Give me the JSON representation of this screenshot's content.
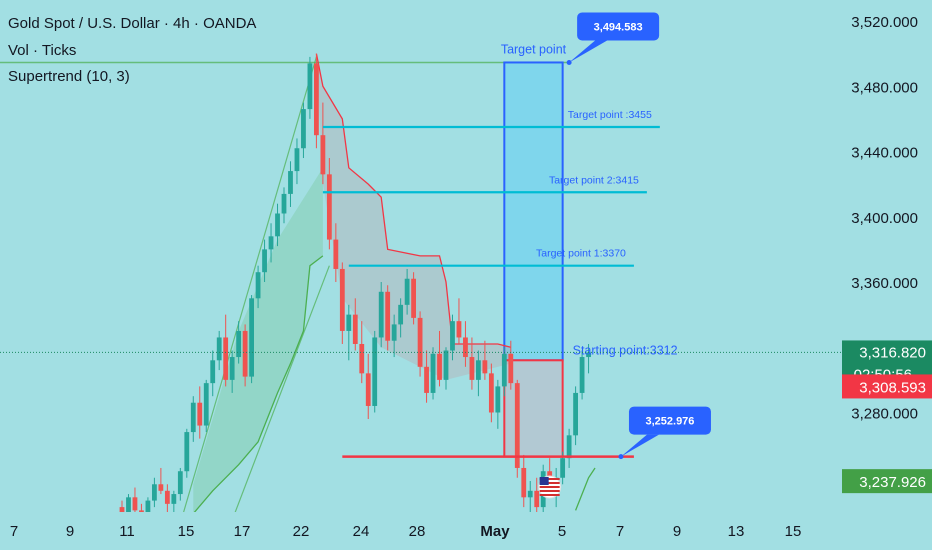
{
  "legend": {
    "title": "Gold Spot / U.S. Dollar · 4h · OANDA",
    "volume": "Vol · Ticks",
    "indicator": "Supertrend (10, 3)"
  },
  "colors": {
    "background": "#a2dfe3",
    "bull": "#26a69a",
    "bear": "#ef5350",
    "supertrend_up": "#4caf50",
    "supertrend_down": "#f23645",
    "target_line": "#00bcd4",
    "box_blue": "#2962ff",
    "box_red": "#f23645",
    "callout": "#2962ff",
    "price_now": "#1b8a62",
    "price_bid": "#f23645",
    "price_green": "#43a047"
  },
  "chart_data": {
    "type": "candlestick",
    "symbol": "XAUUSD",
    "timeframe": "4h",
    "x_ticks": [
      "7",
      "9",
      "11",
      "15",
      "17",
      "22",
      "24",
      "28",
      "May",
      "5",
      "7",
      "9",
      "13",
      "15"
    ],
    "x_tick_bold": "May",
    "y_ticks": [
      3520,
      3480,
      3440,
      3400,
      3360,
      3280
    ],
    "y_tick_labels": [
      "3,520.000",
      "3,480.000",
      "3,440.000",
      "3,400.000",
      "3,360.000",
      "3,280.000"
    ],
    "ylim": [
      3215,
      3532
    ],
    "current_price": {
      "value": 3316.82,
      "label": "3,316.820",
      "countdown": "02:50:56"
    },
    "price_labels": [
      {
        "value": 3308.593,
        "label": "3,308.593",
        "color": "#f23645"
      },
      {
        "value": 3237.926,
        "label": "3,237.926",
        "color": "#43a047"
      }
    ],
    "candles": [
      [
        3222,
        3226,
        3212,
        3218
      ],
      [
        3218,
        3230,
        3215,
        3228
      ],
      [
        3228,
        3234,
        3216,
        3220
      ],
      [
        3220,
        3224,
        3210,
        3214
      ],
      [
        3214,
        3228,
        3210,
        3226
      ],
      [
        3226,
        3240,
        3222,
        3236
      ],
      [
        3236,
        3246,
        3230,
        3232
      ],
      [
        3232,
        3236,
        3218,
        3224
      ],
      [
        3224,
        3232,
        3216,
        3230
      ],
      [
        3230,
        3246,
        3226,
        3244
      ],
      [
        3244,
        3270,
        3240,
        3268
      ],
      [
        3268,
        3290,
        3262,
        3286
      ],
      [
        3286,
        3296,
        3264,
        3272
      ],
      [
        3272,
        3300,
        3268,
        3298
      ],
      [
        3298,
        3318,
        3290,
        3312
      ],
      [
        3312,
        3330,
        3306,
        3326
      ],
      [
        3326,
        3340,
        3296,
        3300
      ],
      [
        3300,
        3318,
        3292,
        3314
      ],
      [
        3314,
        3336,
        3310,
        3330
      ],
      [
        3330,
        3334,
        3296,
        3302
      ],
      [
        3302,
        3352,
        3298,
        3350
      ],
      [
        3350,
        3370,
        3344,
        3366
      ],
      [
        3366,
        3386,
        3360,
        3380
      ],
      [
        3380,
        3396,
        3372,
        3388
      ],
      [
        3388,
        3408,
        3382,
        3402
      ],
      [
        3402,
        3418,
        3396,
        3414
      ],
      [
        3414,
        3434,
        3406,
        3428
      ],
      [
        3428,
        3448,
        3420,
        3442
      ],
      [
        3442,
        3470,
        3436,
        3466
      ],
      [
        3466,
        3498,
        3460,
        3494
      ],
      [
        3494,
        3500,
        3442,
        3450
      ],
      [
        3450,
        3470,
        3420,
        3426
      ],
      [
        3426,
        3436,
        3380,
        3386
      ],
      [
        3386,
        3396,
        3360,
        3368
      ],
      [
        3368,
        3372,
        3322,
        3330
      ],
      [
        3330,
        3346,
        3312,
        3340
      ],
      [
        3340,
        3350,
        3318,
        3322
      ],
      [
        3322,
        3336,
        3298,
        3304
      ],
      [
        3304,
        3316,
        3276,
        3284
      ],
      [
        3284,
        3330,
        3280,
        3326
      ],
      [
        3326,
        3360,
        3320,
        3354
      ],
      [
        3354,
        3358,
        3318,
        3324
      ],
      [
        3324,
        3340,
        3314,
        3334
      ],
      [
        3334,
        3350,
        3326,
        3346
      ],
      [
        3346,
        3368,
        3340,
        3362
      ],
      [
        3362,
        3366,
        3334,
        3338
      ],
      [
        3338,
        3342,
        3302,
        3308
      ],
      [
        3308,
        3318,
        3286,
        3292
      ],
      [
        3292,
        3320,
        3288,
        3316
      ],
      [
        3316,
        3330,
        3296,
        3300
      ],
      [
        3300,
        3320,
        3294,
        3318
      ],
      [
        3318,
        3340,
        3312,
        3336
      ],
      [
        3336,
        3350,
        3322,
        3326
      ],
      [
        3326,
        3336,
        3308,
        3314
      ],
      [
        3314,
        3326,
        3294,
        3300
      ],
      [
        3300,
        3318,
        3290,
        3312
      ],
      [
        3312,
        3324,
        3300,
        3304
      ],
      [
        3304,
        3310,
        3274,
        3280
      ],
      [
        3280,
        3300,
        3270,
        3296
      ],
      [
        3296,
        3320,
        3290,
        3316
      ],
      [
        3316,
        3324,
        3294,
        3298
      ],
      [
        3298,
        3300,
        3240,
        3246
      ],
      [
        3246,
        3254,
        3222,
        3228
      ],
      [
        3228,
        3238,
        3214,
        3232
      ],
      [
        3232,
        3240,
        3218,
        3222
      ],
      [
        3222,
        3248,
        3218,
        3244
      ],
      [
        3244,
        3252,
        3230,
        3236
      ],
      [
        3236,
        3246,
        3222,
        3240
      ],
      [
        3240,
        3256,
        3236,
        3252
      ],
      [
        3252,
        3270,
        3246,
        3266
      ],
      [
        3266,
        3296,
        3260,
        3292
      ],
      [
        3292,
        3318,
        3288,
        3314
      ],
      [
        3314,
        3322,
        3304,
        3316.82
      ]
    ],
    "supertrend": [
      {
        "direction": "up",
        "points": [
          [
            11,
            3218
          ],
          [
            14,
            3232
          ],
          [
            18,
            3248
          ],
          [
            21,
            3262
          ],
          [
            24,
            3292
          ],
          [
            26,
            3310
          ],
          [
            28,
            3330
          ],
          [
            29,
            3370
          ],
          [
            31,
            3376
          ]
        ]
      },
      {
        "direction": "down",
        "points": [
          [
            30,
            3500
          ],
          [
            31,
            3480
          ],
          [
            34,
            3460
          ],
          [
            35,
            3430
          ],
          [
            38,
            3420
          ],
          [
            40,
            3412
          ],
          [
            41,
            3380
          ],
          [
            46,
            3376
          ],
          [
            49,
            3376
          ],
          [
            50,
            3360
          ],
          [
            51,
            3322
          ],
          [
            54,
            3322
          ],
          [
            58,
            3322
          ],
          [
            60,
            3320
          ]
        ]
      },
      {
        "direction": "up",
        "points": [
          [
            70,
            3220
          ],
          [
            72,
            3240
          ],
          [
            73,
            3246
          ]
        ]
      }
    ],
    "annotations": {
      "channel_lines": [
        {
          "points": [
            [
              9,
              3212
            ],
            [
              30,
              3498
            ]
          ]
        },
        {
          "points": [
            [
              17,
              3214
            ],
            [
              32,
              3370
            ]
          ]
        }
      ],
      "resistance_line": {
        "value": 3494.583,
        "from": 0,
        "to": 69
      },
      "support_line": {
        "value": 3252.976,
        "from": 34,
        "to": 79
      },
      "target_lines": [
        {
          "label": "Target point :3455",
          "value": 3455,
          "from": 31,
          "to": 83
        },
        {
          "label": "Target point 2:3415",
          "value": 3415,
          "from": 31,
          "to": 81
        },
        {
          "label": "Target point 1:3370",
          "value": 3370,
          "from": 35,
          "to": 79
        }
      ],
      "target_box": {
        "label": "Target point",
        "top": 3494.583,
        "bottom": 3312,
        "from": 59,
        "to": 68
      },
      "stop_box": {
        "top": 3312,
        "bottom": 3252.976,
        "from": 59,
        "to": 68
      },
      "starting_label": "Starting point:3312",
      "callouts": [
        {
          "label": "3,494.583",
          "value": 3494.583,
          "anchor": 69
        },
        {
          "label": "3,252.976",
          "value": 3252.976,
          "anchor": 77
        }
      ]
    },
    "event_marker": {
      "name": "us-flag-icon",
      "at": 66
    }
  }
}
